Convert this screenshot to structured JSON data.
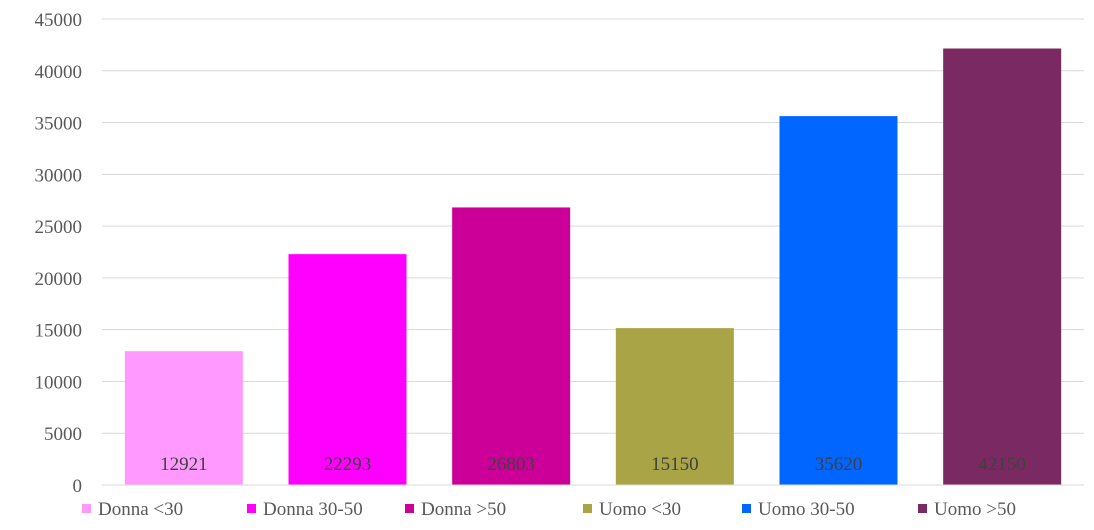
{
  "chart_data": {
    "type": "bar",
    "title": "",
    "xlabel": "",
    "ylabel": "",
    "categories": [
      "Donna <30",
      "Donna 30-50",
      "Donna >50",
      "Uomo <30",
      "Uomo 30-50",
      "Uomo >50"
    ],
    "values": [
      12921,
      22293,
      26803,
      15150,
      35620,
      42150
    ],
    "data_labels": [
      "12921",
      "22293",
      "26803",
      "15150",
      "35620",
      "42150"
    ],
    "colors": [
      "#ff99ff",
      "#ff00ff",
      "#cc0099",
      "#a9a445",
      "#0066ff",
      "#7b2962"
    ],
    "ylim": [
      0,
      45000
    ],
    "yticks": [
      0,
      5000,
      10000,
      15000,
      20000,
      25000,
      30000,
      35000,
      40000,
      45000
    ],
    "ytick_labels": [
      "0",
      "5000",
      "10000",
      "15000",
      "20000",
      "25000",
      "30000",
      "35000",
      "40000",
      "45000"
    ],
    "grid": true,
    "legend_position": "bottom",
    "legend": [
      "Donna <30",
      "Donna 30-50",
      "Donna >50",
      "Uomo <30",
      "Uomo 30-50",
      "Uomo >50"
    ]
  }
}
